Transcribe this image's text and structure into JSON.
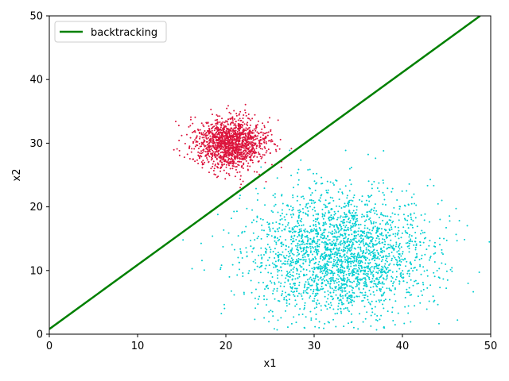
{
  "chart_data": {
    "type": "scatter",
    "title": "",
    "xlabel": "x1",
    "ylabel": "x2",
    "xlim": [
      0,
      50
    ],
    "ylim": [
      0,
      50
    ],
    "xticks": [
      0,
      10,
      20,
      30,
      40,
      50
    ],
    "yticks": [
      0,
      10,
      20,
      30,
      40,
      50
    ],
    "tick_labels_x": [
      "0",
      "10",
      "20",
      "30",
      "40",
      "50"
    ],
    "tick_labels_y": [
      "0",
      "10",
      "20",
      "30",
      "40",
      "50"
    ],
    "grid": false,
    "legend": {
      "placement": "top-left",
      "entries": [
        "backtracking"
      ]
    },
    "series": [
      {
        "kind": "scatter",
        "color": "#dc143c",
        "count": 1500,
        "center": [
          20.5,
          30.0
        ],
        "spread": [
          2.0,
          2.0
        ]
      },
      {
        "kind": "scatter",
        "color": "#00ced1",
        "count": 2500,
        "center": [
          33.0,
          12.5
        ],
        "spread": [
          5.0,
          5.0
        ]
      },
      {
        "kind": "line",
        "name": "backtracking",
        "color": "#008000",
        "x": [
          0,
          48.8
        ],
        "y": [
          0.8,
          50
        ]
      }
    ]
  }
}
